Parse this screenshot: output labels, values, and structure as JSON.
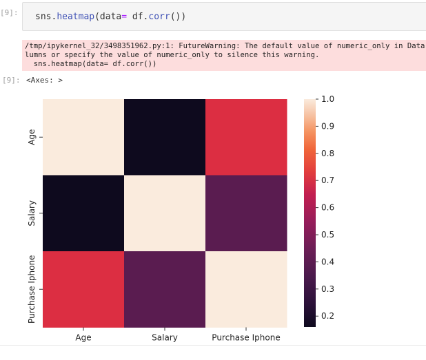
{
  "cell": {
    "input_prompt": "[9]:",
    "code_prefix": "sns.",
    "code_func": "heatmap",
    "code_paren": "(data",
    "code_eq": "=",
    "code_space": " df.",
    "code_method": "corr",
    "code_suffix": "())",
    "stderr_lines": [
      "/tmp/ipykernel_32/3498351962.py:1: FutureWarning: The default value of numeric_only in Data",
      "lumns or specify the value of numeric_only to silence this warning.",
      "  sns.heatmap(data= df.corr())"
    ],
    "output_prompt": "[9]:",
    "output_text": "<Axes: >"
  },
  "chart_data": {
    "type": "heatmap",
    "rows": [
      "Age",
      "Salary",
      "Purchase Iphone"
    ],
    "columns": [
      "Age",
      "Salary",
      "Purchase Iphone"
    ],
    "values": [
      [
        1.0,
        0.16,
        0.62
      ],
      [
        0.16,
        1.0,
        0.41
      ],
      [
        0.62,
        0.41,
        1.0
      ]
    ],
    "colormap": "rocket",
    "vmin": 0.16,
    "vmax": 1.0,
    "colorbar_ticks": [
      "1.0",
      "0.9",
      "0.8",
      "0.7",
      "0.6",
      "0.5",
      "0.4",
      "0.3",
      "0.2"
    ],
    "colorbar_tick_values": [
      1.0,
      0.9,
      0.8,
      0.7,
      0.6,
      0.5,
      0.4,
      0.3,
      0.2
    ],
    "cell_colors": [
      [
        "#faebdd",
        "#0e0a1e",
        "#dc2e42"
      ],
      [
        "#0e0a1e",
        "#faebdd",
        "#5a1c50"
      ],
      [
        "#dc2e42",
        "#5a1c50",
        "#faebdd"
      ]
    ]
  }
}
